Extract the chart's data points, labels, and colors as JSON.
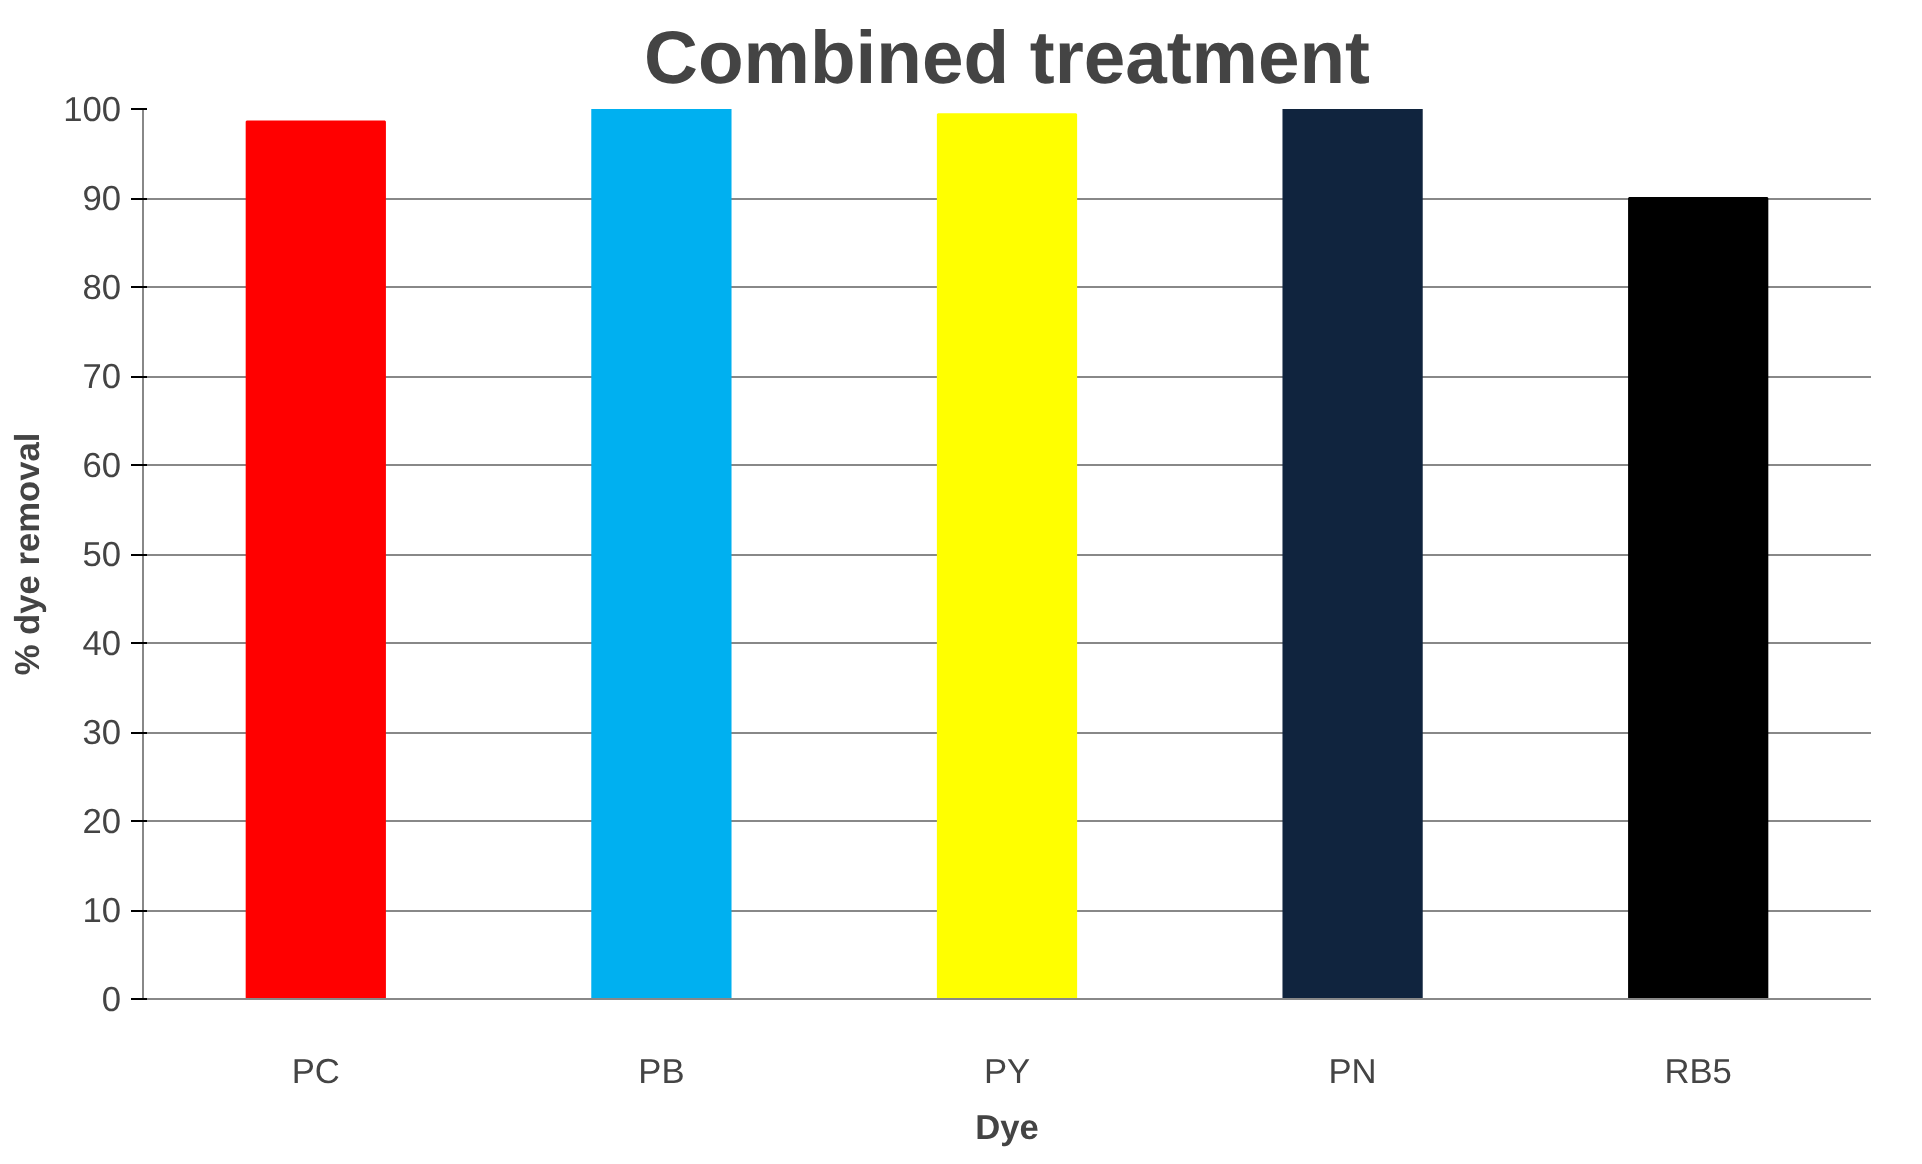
{
  "chart_data": {
    "type": "bar",
    "title": "Combined treatment",
    "xlabel": "Dye",
    "ylabel": "% dye removal",
    "categories": [
      "PC",
      "PB",
      "PY",
      "PN",
      "RB5"
    ],
    "values": [
      98.6,
      100,
      99.4,
      100,
      90
    ],
    "colors": [
      "#ff0000",
      "#00b0f0",
      "#ffff00",
      "#10243e",
      "#000000"
    ],
    "ylim": [
      0,
      100
    ],
    "yticks": [
      0,
      10,
      20,
      30,
      40,
      50,
      60,
      70,
      80,
      90,
      100
    ],
    "grid": "y"
  }
}
